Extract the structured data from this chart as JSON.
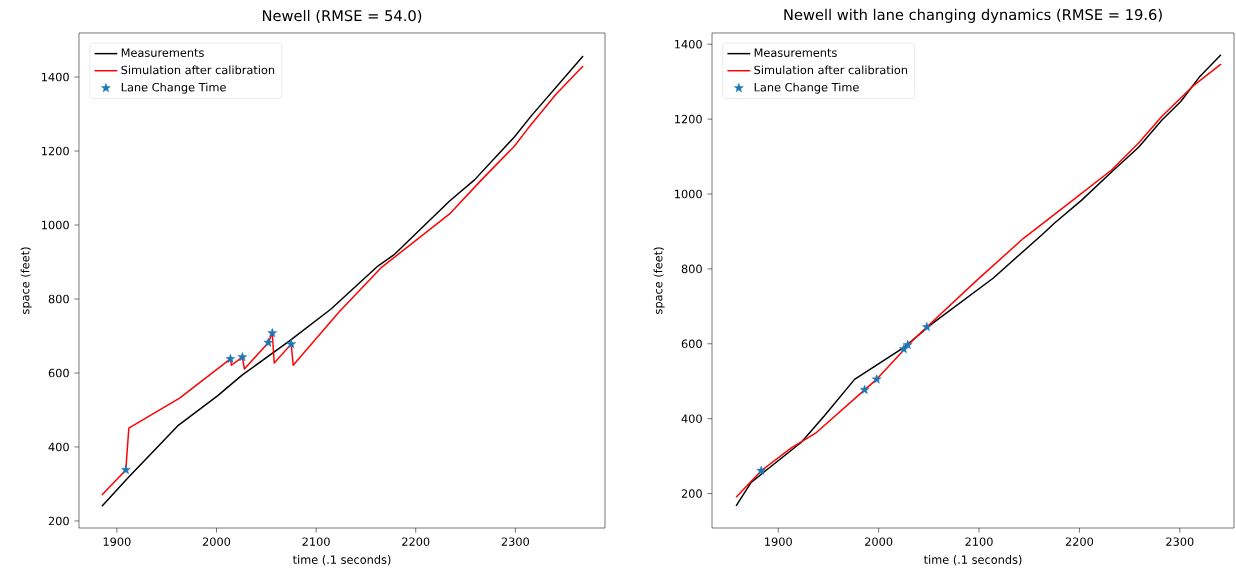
{
  "chart_data": [
    {
      "type": "line",
      "title": "Newell (RMSE = 54.0)",
      "xlabel": "time (.1 seconds)",
      "ylabel": "space (feet)",
      "xlim": [
        1862,
        2390
      ],
      "ylim": [
        181,
        1519
      ],
      "xticks": [
        1900,
        2000,
        2100,
        2200,
        2300
      ],
      "yticks": [
        200,
        400,
        600,
        800,
        1000,
        1200,
        1400
      ],
      "legend": "top left",
      "series": [
        {
          "name": "Measurements",
          "color": "#000000",
          "x": [
            1885,
            1911,
            1961,
            2001,
            2026,
            2073,
            2115,
            2162,
            2178,
            2234,
            2259,
            2299,
            2316,
            2368
          ],
          "values": [
            240,
            316,
            457,
            538,
            595,
            686,
            773,
            889,
            919,
            1065,
            1122,
            1238,
            1295,
            1457
          ]
        },
        {
          "name": "Simulation after calibration",
          "color": "#ff0000",
          "x": [
            1885,
            1909,
            1912,
            1963,
            2014,
            2015,
            2026,
            2028,
            2052,
            2056,
            2058,
            2075,
            2077,
            2123,
            2165,
            2234,
            2266,
            2299,
            2313,
            2341,
            2368
          ],
          "values": [
            270,
            338,
            451,
            532,
            638,
            621,
            643,
            611,
            682,
            708,
            627,
            678,
            621,
            765,
            884,
            1030,
            1122,
            1213,
            1262,
            1354,
            1430
          ]
        },
        {
          "name": "Lane Change Time",
          "color": "#1f77b4",
          "type": "scatter",
          "marker": "star",
          "x": [
            1909,
            2014,
            2026,
            2052,
            2056,
            2075
          ],
          "values": [
            338,
            638,
            643,
            682,
            708,
            678
          ]
        }
      ]
    },
    {
      "type": "line",
      "title": "Newell with lane changing dynamics (RMSE = 19.6)",
      "xlabel": "time (.1 seconds)",
      "ylabel": "space (feet)",
      "xlim": [
        1834,
        2354
      ],
      "ylim": [
        108,
        1430
      ],
      "xticks": [
        1900,
        2000,
        2100,
        2200,
        2300
      ],
      "yticks": [
        200,
        400,
        600,
        800,
        1000,
        1200,
        1400
      ],
      "legend": "top left",
      "series": [
        {
          "name": "Measurements",
          "color": "#000000",
          "x": [
            1858,
            1873,
            1923,
            1946,
            1976,
            2026,
            2053,
            2114,
            2163,
            2175,
            2202,
            2232,
            2259,
            2282,
            2301,
            2320,
            2341
          ],
          "values": [
            167,
            230,
            337,
            408,
            505,
            592,
            653,
            775,
            892,
            922,
            983,
            1059,
            1125,
            1197,
            1247,
            1314,
            1372
          ]
        },
        {
          "name": "Simulation after calibration",
          "color": "#ff0000",
          "x": [
            1858,
            1883,
            1913,
            1938,
            1986,
            1998,
            2026,
            2030,
            2048,
            2098,
            2144,
            2198,
            2232,
            2259,
            2282,
            2313,
            2341
          ],
          "values": [
            190,
            261,
            322,
            363,
            477,
            505,
            586,
            599,
            645,
            770,
            881,
            993,
            1064,
            1136,
            1207,
            1288,
            1347
          ]
        },
        {
          "name": "Lane Change Time",
          "color": "#1f77b4",
          "type": "scatter",
          "marker": "star",
          "x": [
            1883,
            1986,
            1998,
            2025,
            2029,
            2048
          ],
          "values": [
            261,
            477,
            505,
            586,
            597,
            645
          ]
        }
      ]
    }
  ]
}
